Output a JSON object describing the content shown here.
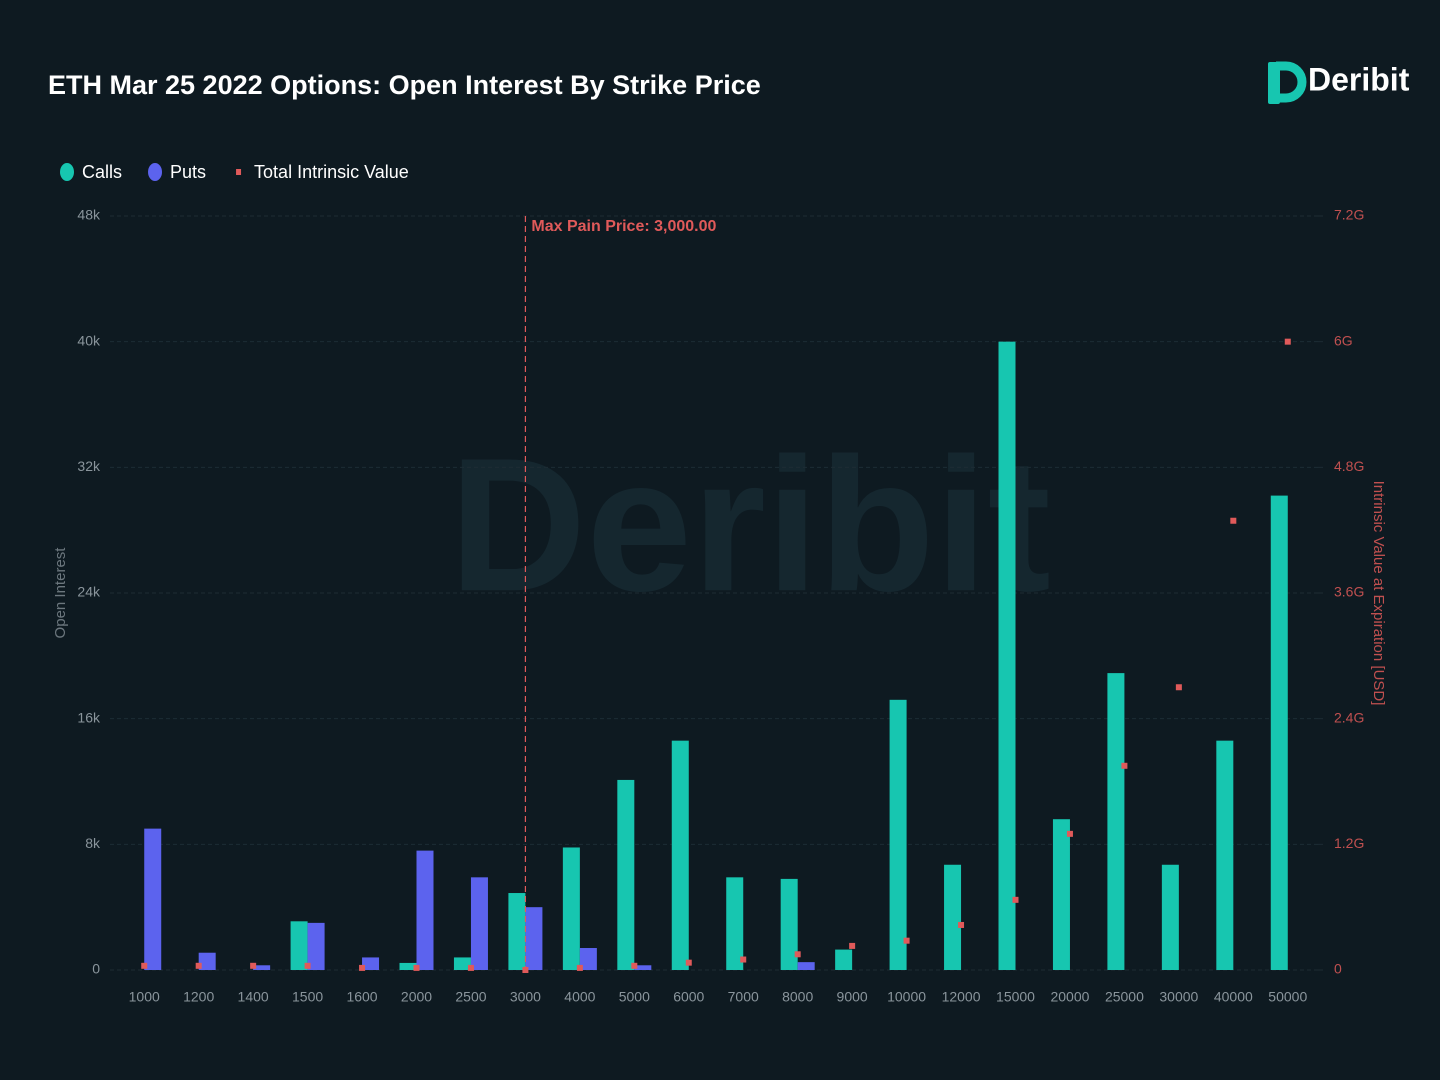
{
  "chart_data": {
    "type": "bar",
    "title": "ETH Mar 25 2022 Options: Open Interest By Strike Price",
    "brand": "Deribit",
    "categories": [
      "1000",
      "1200",
      "1400",
      "1500",
      "1600",
      "2000",
      "2500",
      "3000",
      "4000",
      "5000",
      "6000",
      "7000",
      "8000",
      "9000",
      "10000",
      "12000",
      "15000",
      "20000",
      "25000",
      "30000",
      "40000",
      "50000"
    ],
    "series": [
      {
        "name": "Calls",
        "color": "#17c6b0",
        "values": [
          0,
          0,
          0,
          3100,
          0,
          450,
          800,
          4900,
          7800,
          12100,
          14600,
          5900,
          5800,
          1300,
          17200,
          6700,
          40000,
          9600,
          18900,
          6700,
          14600,
          30200
        ]
      },
      {
        "name": "Puts",
        "color": "#5c63ee",
        "values": [
          9000,
          1100,
          300,
          3000,
          800,
          7600,
          5900,
          4000,
          1400,
          300,
          0,
          0,
          500,
          0,
          0,
          0,
          0,
          0,
          0,
          0,
          0,
          0
        ]
      },
      {
        "name": "Total Intrinsic Value",
        "color": "#e05a5a",
        "axis": "y2",
        "values": [
          40000000,
          40000000,
          40000000,
          40000000,
          20000000,
          20000000,
          20000000,
          0,
          20000000,
          40000000,
          70000000,
          100000000,
          150000000,
          230000000,
          280000000,
          430000000,
          670000000,
          1300000000,
          1950000000,
          2700000000,
          4290000000,
          6000000000
        ]
      }
    ],
    "ylabel": "Open Interest",
    "y2label": "Intrinsic Value at Expiration [USD]",
    "ylim": [
      0,
      48000
    ],
    "yticks": [
      0,
      {
        "value": 8000,
        "label": "8k"
      },
      {
        "value": 16000,
        "label": "16k"
      },
      {
        "value": 24000,
        "label": "24k"
      },
      {
        "value": 32000,
        "label": "32k"
      },
      {
        "value": 40000,
        "label": "40k"
      },
      {
        "value": 48000,
        "label": "48k"
      }
    ],
    "y2lim": [
      0,
      7200000000
    ],
    "y2ticks": [
      0,
      {
        "value": 1200000000,
        "label": "1.2G"
      },
      {
        "value": 2400000000,
        "label": "2.4G"
      },
      {
        "value": 3600000000,
        "label": "3.6G"
      },
      {
        "value": 4800000000,
        "label": "4.8G"
      },
      {
        "value": 6000000000,
        "label": "6G"
      },
      {
        "value": 7200000000,
        "label": "7.2G"
      }
    ],
    "grid": true,
    "legend": "top-left",
    "annotation": {
      "label": "Max Pain Price: 3,000.00",
      "category": "3000",
      "color": "#e05a5a"
    }
  }
}
